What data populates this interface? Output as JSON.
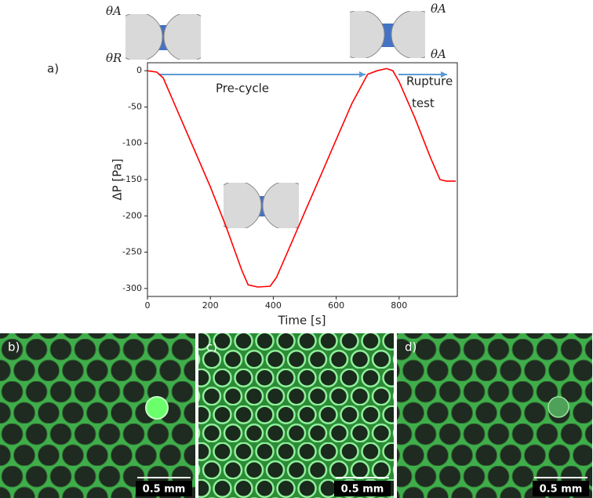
{
  "chart_data": {
    "type": "line",
    "panel_label": "a)",
    "xlabel": "Time [s]",
    "ylabel": "ΔP [Pa]",
    "x": [
      0,
      30,
      50,
      100,
      150,
      200,
      250,
      300,
      320,
      350,
      390,
      410,
      450,
      500,
      550,
      600,
      650,
      700,
      730,
      760,
      780,
      800,
      850,
      900,
      930,
      950,
      980
    ],
    "values": [
      0,
      -2,
      -10,
      -60,
      -110,
      -160,
      -215,
      -275,
      -295,
      -298,
      -297,
      -285,
      -245,
      -195,
      -145,
      -95,
      -45,
      -5,
      0,
      3,
      0,
      -15,
      -65,
      -120,
      -150,
      -152,
      -152
    ],
    "color": "#ff0000",
    "xlim": [
      0,
      985
    ],
    "xticks": [
      0,
      200,
      400,
      600,
      800
    ],
    "ylim": [
      -311,
      11
    ],
    "yticks": [
      0,
      -50,
      -100,
      -150,
      -200,
      -250,
      -300
    ],
    "annotations": [
      "Pre-cycle",
      "Rupture",
      "test",
      "θA",
      "θR",
      "θA",
      "θA"
    ]
  },
  "micro_panels": [
    {
      "label": "b)",
      "scale": "0.5 mm"
    },
    {
      "label": "c)",
      "scale": "0.5 mm"
    },
    {
      "label": "d)",
      "scale": "0.5 mm"
    }
  ]
}
